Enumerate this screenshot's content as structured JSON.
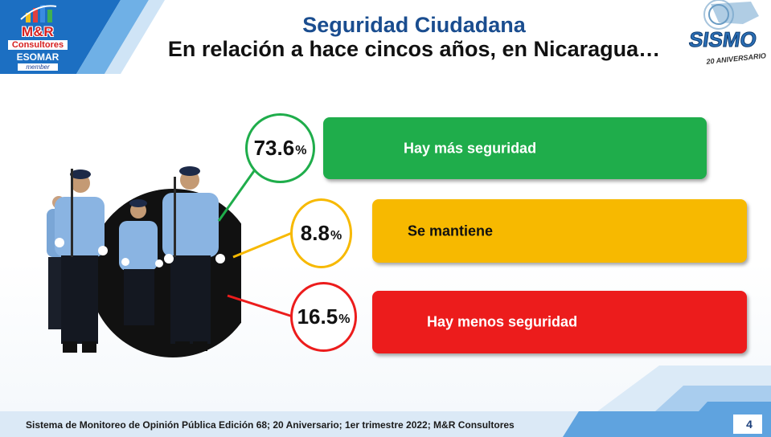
{
  "header": {
    "title": "Seguridad Ciudadana",
    "subtitle": "En relación a hace cincos años, en Nicaragua…"
  },
  "logo_left": {
    "line1": "M&R",
    "line2": "Consultores",
    "line3": "ESOMAR",
    "line4": "member"
  },
  "logo_right": {
    "name": "SISMO",
    "tagline": "20 ANIVERSARIO"
  },
  "results": [
    {
      "value": "73.6",
      "unit": "%",
      "label": "Hay más seguridad",
      "color": "#1fad4b"
    },
    {
      "value": "8.8",
      "unit": "%",
      "label": "Se mantiene",
      "color": "#f7b900"
    },
    {
      "value": "16.5",
      "unit": "%",
      "label": "Hay menos seguridad",
      "color": "#ec1c1c"
    }
  ],
  "footer": {
    "text": "Sistema de Monitoreo de Opinión Pública  Edición 68; 20 Aniversario;  1er trimestre 2022; M&R Consultores",
    "page": "4"
  },
  "colors": {
    "title_blue": "#1a4d8f",
    "corner_blue": "#1c6fc2",
    "footer_blue": "#c9dff2"
  }
}
